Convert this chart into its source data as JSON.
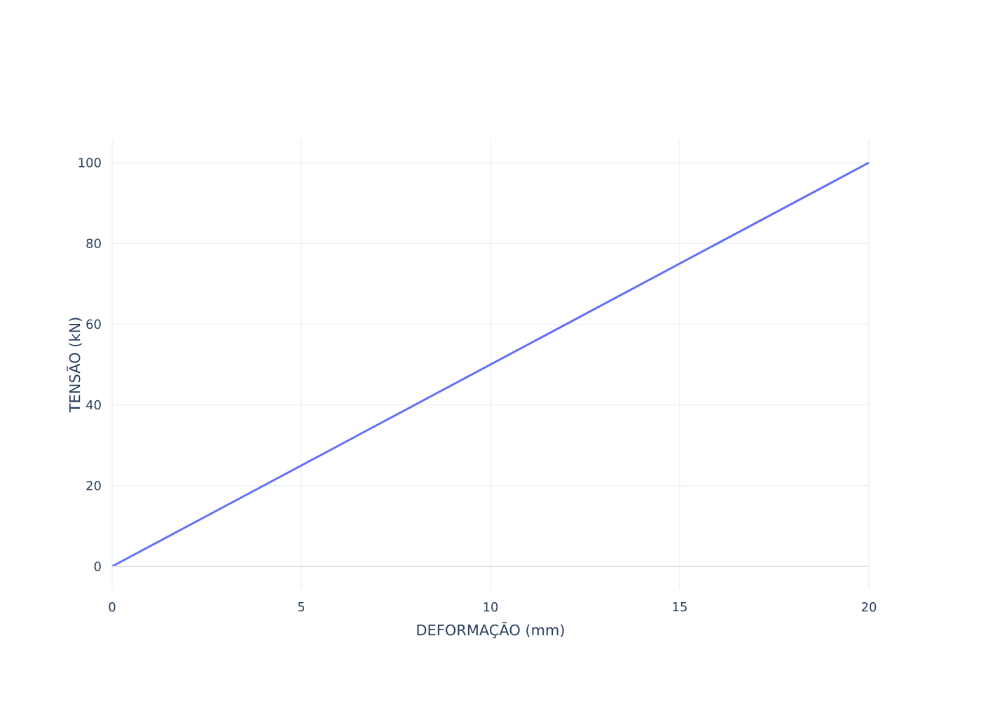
{
  "chart_data": {
    "type": "line",
    "xlabel": "DEFORMAÇÃO (mm)",
    "ylabel": "TENSÃO (kN)",
    "x": [
      0,
      20
    ],
    "series": [
      {
        "color": "#636efa",
        "values": [
          0,
          100
        ]
      }
    ],
    "xlim": [
      0,
      20
    ],
    "ylim": [
      -5.56,
      105.56
    ],
    "xticks": [
      0,
      5,
      10,
      15,
      20
    ],
    "yticks": [
      0,
      20,
      40,
      60,
      80,
      100
    ],
    "grid": true,
    "marker": "none",
    "line_style": "solid"
  }
}
